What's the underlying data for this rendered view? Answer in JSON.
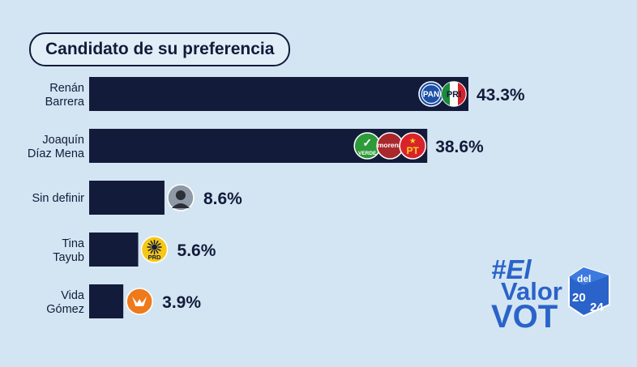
{
  "chart_data": {
    "type": "bar",
    "orientation": "horizontal",
    "title": "Candidato de su preferencia",
    "categories": [
      [
        "Renán",
        "Barrera"
      ],
      [
        "Joaquín",
        "Díaz Mena"
      ],
      [
        "Sin definir"
      ],
      [
        "Tina",
        "Tayub"
      ],
      [
        "Vida",
        "Gómez"
      ]
    ],
    "values": [
      43.3,
      38.6,
      8.6,
      5.6,
      3.9
    ],
    "value_labels": [
      "43.3%",
      "38.6%",
      "8.6%",
      "5.6%",
      "3.9%"
    ],
    "party_logos": [
      [
        "PAN",
        "PRI"
      ],
      [
        "VERDE",
        "morena",
        "PT"
      ],
      [
        "person-silhouette-icon"
      ],
      [
        "PRD"
      ],
      [
        "MC"
      ]
    ],
    "bar_color": "#131b3a",
    "background_color": "#d3e5f2",
    "grid": false,
    "legend": "none"
  },
  "logos": {
    "pan": "PAN",
    "pri": "PRI",
    "verde": "VERDE",
    "morena": "morena",
    "pt": "PT",
    "prd": "PRD"
  },
  "brand": {
    "line1": "#El",
    "line2": "Valor",
    "line3": "VOT",
    "del": "del",
    "year_a": "20",
    "year_b": "24",
    "colors": {
      "blue": "#2a63c9",
      "light": "#ffffff"
    }
  }
}
